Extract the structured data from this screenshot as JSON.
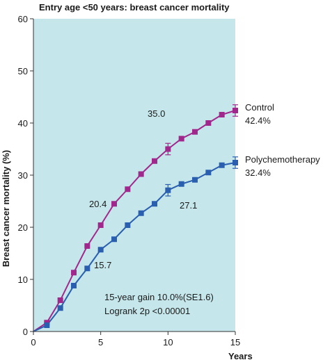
{
  "chart_data": {
    "type": "line",
    "title": "Entry age <50 years: breast cancer mortality",
    "xlabel": "Years",
    "ylabel": "Breast cancer mortality (%)",
    "xlim": [
      0,
      15
    ],
    "ylim": [
      0,
      60
    ],
    "x_ticks": [
      "0",
      "5",
      "10",
      "15"
    ],
    "y_ticks": [
      "0",
      "10",
      "20",
      "30",
      "40",
      "50",
      "60"
    ],
    "grid": false,
    "background_color": "#c5e6ea",
    "series": [
      {
        "name": "Control",
        "end_label": "42.4%",
        "color": "#a0288c",
        "x": [
          0,
          1,
          2,
          3,
          4,
          5,
          6,
          7,
          8,
          9,
          10,
          11,
          12,
          13,
          14,
          15
        ],
        "y": [
          0,
          1.7,
          6.0,
          11.3,
          16.4,
          20.4,
          24.5,
          27.3,
          30.2,
          32.7,
          35.0,
          37.0,
          38.3,
          40.0,
          41.6,
          42.4
        ],
        "error_bars_at": [
          10,
          15
        ],
        "error": 1.1
      },
      {
        "name": "Polychemotherapy",
        "end_label": "32.4%",
        "color": "#2a5fb0",
        "x": [
          0,
          1,
          2,
          3,
          4,
          5,
          6,
          7,
          8,
          9,
          10,
          11,
          12,
          13,
          14,
          15
        ],
        "y": [
          0,
          1.2,
          4.5,
          8.8,
          12.1,
          15.7,
          17.7,
          20.4,
          22.7,
          24.5,
          27.1,
          28.3,
          29.1,
          30.5,
          31.9,
          32.4
        ],
        "error_bars_at": [
          10,
          15
        ],
        "error": 1.1
      }
    ],
    "data_labels": [
      {
        "text": "35.0",
        "series": "Control"
      },
      {
        "text": "20.4",
        "series": "Control"
      },
      {
        "text": "27.1",
        "series": "Polychemotherapy"
      },
      {
        "text": "15.7",
        "series": "Polychemotherapy"
      }
    ],
    "annotations": [
      "15-year gain 10.0%(SE1.6)",
      "Logrank 2p <0.00001"
    ]
  }
}
